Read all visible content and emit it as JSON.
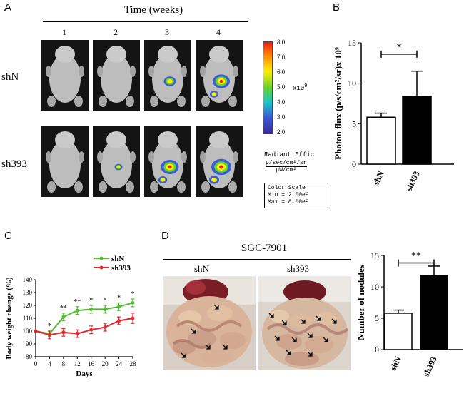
{
  "panels": {
    "A": {
      "letter": "A",
      "time_title": "Time (weeks)",
      "weeks": [
        "1",
        "2",
        "3",
        "4"
      ],
      "rows": [
        "shN",
        "sh393"
      ],
      "colorbar": {
        "ticks": [
          "8.0",
          "7.0",
          "6.0",
          "5.0",
          "4.0",
          "3.0",
          "2.0"
        ],
        "exponent": "x10",
        "exponent_power": "9",
        "radiant_label": "Radiant Effic",
        "units_line": "p/sec/cm²/sr",
        "units_sub": "μW/cm²",
        "scale_box": {
          "title": "Color Scale",
          "min": "Min = 2.00e9",
          "max": "Max = 8.00e9"
        }
      },
      "signal_intensity": {
        "shN": [
          0,
          0,
          0.45,
          0.8
        ],
        "sh393": [
          0,
          0.15,
          0.85,
          1.0
        ]
      }
    },
    "B": {
      "letter": "B",
      "significance": "*"
    },
    "C": {
      "letter": "C",
      "legend": [
        "shN",
        "sh393"
      ]
    },
    "D": {
      "letter": "D",
      "cell_line": "SGC-7901",
      "photo_labels": [
        "shN",
        "sh393"
      ],
      "significance": "**"
    }
  },
  "colors": {
    "shN_line": "#55bb33",
    "sh393_line": "#e3262b",
    "bar_open": "#ffffff",
    "bar_filled": "#000000",
    "mouse_bg": "#141414"
  },
  "chart_data": [
    {
      "id": "B",
      "type": "bar",
      "categories": [
        "shN",
        "sh393"
      ],
      "values": [
        5.8,
        8.4
      ],
      "errors": [
        0.5,
        3.1
      ],
      "ylabel": "Photon flux (p/s/cm²/sr)x 10⁹",
      "ylim": [
        0,
        15
      ],
      "yticks": [
        0,
        5,
        10,
        15
      ],
      "significance": "*"
    },
    {
      "id": "C",
      "type": "line",
      "x": [
        0,
        4,
        8,
        12,
        16,
        20,
        24,
        28
      ],
      "xticks": [
        0,
        4,
        8,
        12,
        16,
        20,
        24,
        28
      ],
      "xlabel": "Days",
      "ylabel": "Body weight change (%)",
      "ylim": [
        80,
        140
      ],
      "yticks": [
        80,
        90,
        100,
        110,
        120,
        130,
        140
      ],
      "series": [
        {
          "name": "shN",
          "values": [
            100,
            98,
            111,
            116,
            117,
            117,
            119,
            122
          ],
          "errors": [
            0,
            2,
            3,
            3,
            3,
            3,
            3,
            3
          ]
        },
        {
          "name": "sh393",
          "values": [
            100,
            97,
            99,
            98,
            101,
            103,
            108,
            110
          ],
          "errors": [
            0,
            3,
            3,
            3,
            3,
            3,
            3,
            4
          ]
        }
      ],
      "significance": [
        "",
        "*",
        "**",
        "**",
        "*",
        "*",
        "*",
        "*"
      ]
    },
    {
      "id": "D",
      "type": "bar",
      "categories": [
        "shN",
        "sh393"
      ],
      "values": [
        5.8,
        11.8
      ],
      "errors": [
        0.5,
        1.5
      ],
      "ylabel": "Number of nodules",
      "ylim": [
        0,
        15
      ],
      "yticks": [
        0,
        5,
        10,
        15
      ],
      "significance": "**"
    }
  ]
}
